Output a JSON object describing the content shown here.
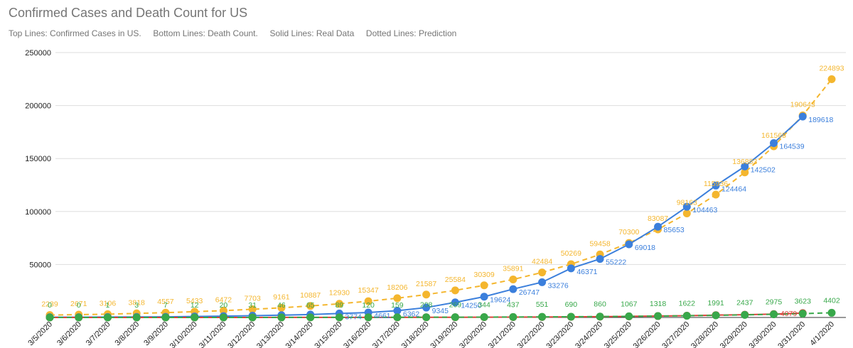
{
  "chart_data": {
    "type": "line",
    "title": "Confirmed Cases and Death Count for US",
    "subtitle": "Top Lines: Confirmed Cases in US.     Bottom Lines: Death Count.     Solid Lines: Real Data     Dotted Lines: Prediction",
    "categories": [
      "3/5/2020",
      "3/6/2020",
      "3/7/2020",
      "3/8/2020",
      "3/9/2020",
      "3/10/2020",
      "3/11/2020",
      "3/12/2020",
      "3/13/2020",
      "3/14/2020",
      "3/15/2020",
      "3/16/2020",
      "3/17/2020",
      "3/18/2020",
      "3/19/2020",
      "3/20/2020",
      "3/21/2020",
      "3/22/2020",
      "3/23/2020",
      "3/24/2020",
      "3/25/2020",
      "3/26/2020",
      "3/27/2020",
      "3/28/2020",
      "3/29/2020",
      "3/30/2020",
      "3/31/2020",
      "4/1/2020"
    ],
    "series": [
      {
        "color": "#f4b62e",
        "dashed": true,
        "values": [
          2239,
          2671,
          3106,
          3818,
          4557,
          5433,
          6472,
          7703,
          9161,
          10887,
          12930,
          15347,
          18206,
          21587,
          25584,
          30309,
          35891,
          42484,
          50269,
          59458,
          70300,
          83087,
          98163,
          115936,
          136883,
          161565,
          190643,
          224893
        ]
      },
      {
        "color": "#3b7fdc",
        "dashed": false,
        "values": [
          217,
          262,
          402,
          518,
          583,
          959,
          1281,
          1663,
          2179,
          2726,
          3774,
          4661,
          6362,
          9345,
          14250,
          19624,
          26747,
          33276,
          46371,
          55222,
          69018,
          85653,
          104463,
          124464,
          142502,
          164539,
          189618,
          null
        ],
        "value_labels": [
          null,
          null,
          null,
          null,
          null,
          null,
          null,
          null,
          null,
          null,
          "3774",
          "4661",
          "6362",
          "9345",
          "14250",
          "19624",
          "26747",
          "33276",
          "46371",
          "55222",
          "69018",
          "85653",
          "104463",
          "124464",
          "142502",
          "164539",
          "189618",
          null
        ]
      },
      {
        "color": "#d8433a",
        "dashed": false,
        "values": [
          12,
          14,
          17,
          21,
          22,
          28,
          36,
          40,
          49,
          57,
          69,
          87,
          110,
          150,
          207,
          256,
          346,
          446,
          582,
          780,
          1027,
          1301,
          1697,
          2220,
          2566,
          3150,
          4079,
          null
        ],
        "value_labels": [
          null,
          null,
          null,
          null,
          null,
          null,
          null,
          null,
          null,
          null,
          null,
          null,
          null,
          null,
          null,
          null,
          null,
          null,
          null,
          null,
          null,
          null,
          null,
          null,
          null,
          null,
          "4079",
          null
        ]
      },
      {
        "color": "#38a84a",
        "dashed": true,
        "values": [
          0,
          0,
          1,
          3,
          7,
          12,
          20,
          31,
          46,
          65,
          89,
          120,
          159,
          208,
          269,
          344,
          437,
          551,
          690,
          860,
          1067,
          1318,
          1622,
          1991,
          2437,
          2975,
          3623,
          4402
        ]
      }
    ],
    "ylim": [
      0,
      250000
    ],
    "yticks": [
      0,
      50000,
      100000,
      150000,
      200000,
      250000
    ],
    "grid": true
  }
}
